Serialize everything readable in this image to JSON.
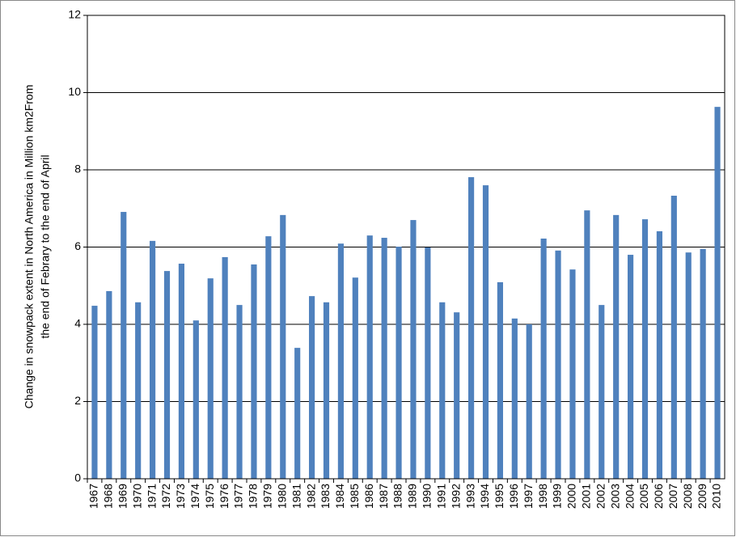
{
  "chart_data": {
    "type": "bar",
    "y_label": [
      "Change in snowpack extent in North America in Million km2From",
      "the end of Febrary to the end of April"
    ],
    "categories": [
      "1967",
      "1968",
      "1969",
      "1970",
      "1971",
      "1972",
      "1973",
      "1974",
      "1975",
      "1976",
      "1977",
      "1978",
      "1979",
      "1980",
      "1981",
      "1982",
      "1983",
      "1984",
      "1985",
      "1986",
      "1987",
      "1988",
      "1989",
      "1990",
      "1991",
      "1992",
      "1993",
      "1994",
      "1995",
      "1996",
      "1997",
      "1998",
      "1999",
      "2000",
      "2001",
      "2002",
      "2003",
      "2004",
      "2005",
      "2006",
      "2007",
      "2008",
      "2009",
      "2010"
    ],
    "values": [
      4.48,
      4.86,
      6.91,
      4.57,
      6.16,
      5.38,
      5.57,
      4.1,
      5.19,
      5.74,
      4.5,
      5.55,
      6.28,
      6.83,
      3.39,
      4.73,
      4.57,
      6.09,
      5.21,
      6.3,
      6.24,
      6.01,
      6.7,
      5.99,
      4.57,
      4.31,
      7.81,
      7.6,
      5.09,
      4.15,
      4.0,
      6.22,
      5.91,
      5.42,
      6.95,
      4.5,
      6.83,
      5.8,
      6.72,
      6.41,
      7.33,
      5.86,
      5.95,
      9.63
    ],
    "color": "#4f81bd",
    "ylim": [
      0,
      12
    ],
    "yticks": [
      0,
      2,
      4,
      6,
      8,
      10,
      12
    ],
    "grid": true
  }
}
